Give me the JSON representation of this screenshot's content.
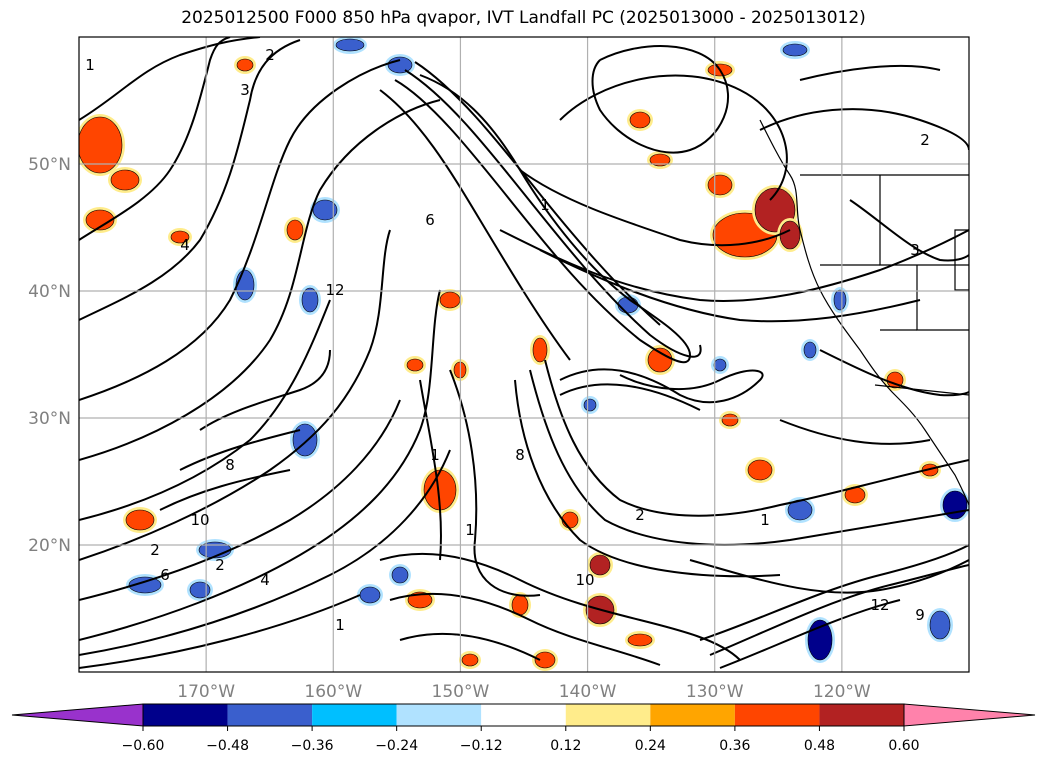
{
  "title": "2025012500 F000 850 hPa qvapor, IVT Landfall PC (2025013000 - 2025013012)",
  "map": {
    "lon_range": [
      -180,
      -110
    ],
    "lat_range": [
      10,
      60
    ],
    "lat_ticks": [
      {
        "value": 50,
        "label": "50°N"
      },
      {
        "value": 40,
        "label": "40°N"
      },
      {
        "value": 30,
        "label": "30°N"
      },
      {
        "value": 20,
        "label": "20°N"
      }
    ],
    "lon_ticks": [
      {
        "value": -170,
        "label": "170°W"
      },
      {
        "value": -160,
        "label": "160°W"
      },
      {
        "value": -150,
        "label": "150°W"
      },
      {
        "value": -140,
        "label": "140°W"
      },
      {
        "value": -130,
        "label": "130°W"
      },
      {
        "value": -120,
        "label": "120°W"
      }
    ],
    "grid": true,
    "contour_labels": [
      "1",
      "2",
      "3",
      "4",
      "6",
      "8",
      "10",
      "12",
      "1",
      "2",
      "4",
      "1",
      "2",
      "6",
      "8",
      "1",
      "10",
      "12",
      "9",
      "3",
      "1",
      "1",
      "2",
      "2"
    ]
  },
  "colorbar": {
    "levels": [
      "-0.60",
      "-0.48",
      "-0.36",
      "-0.24",
      "-0.12",
      "0.12",
      "0.24",
      "0.36",
      "0.48",
      "0.60"
    ],
    "colors": [
      "#9932cc",
      "#00008b",
      "#3a5fcd",
      "#00bfff",
      "#b0e2ff",
      "#ffffff",
      "#ffec8b",
      "#ffa500",
      "#ff4500",
      "#b22222",
      "#ff82ab"
    ],
    "extend": "both"
  },
  "palette": {
    "positive_strong": "#ff4500",
    "positive_mid": "#ffa500",
    "positive_weak": "#ffec8b",
    "positive_max": "#b22222",
    "negative_strong": "#3a5fcd",
    "negative_mid": "#00bfff",
    "negative_weak": "#b0e2ff",
    "negative_max": "#00008b"
  }
}
